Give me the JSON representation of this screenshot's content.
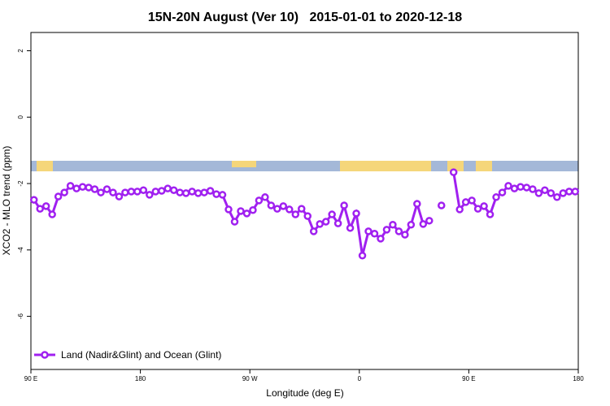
{
  "chart_data": {
    "type": "line",
    "title": "15N-20N August (Ver 10)   2015-01-01 to 2020-12-18",
    "x_label": "Longitude (deg E)",
    "y_label": "XCO2 - MLO trend (ppm)",
    "xlim": [
      90,
      540
    ],
    "ylim": [
      -7.6,
      2.55
    ],
    "xticks": [
      {
        "value": 90,
        "label": "90 E"
      },
      180,
      {
        "value": 270,
        "label": "90 W"
      },
      {
        "value": 360,
        "label": "0"
      },
      {
        "value": 450,
        "label": "90 E"
      },
      {
        "value": 540,
        "label": "180"
      }
    ],
    "yticks": [
      2,
      0,
      -2,
      -4,
      -6
    ],
    "x": [
      92.5,
      97.5,
      102.5,
      107.5,
      112.5,
      117.5,
      122.5,
      127.5,
      132.5,
      137.5,
      142.5,
      147.5,
      152.5,
      157.5,
      162.5,
      167.5,
      172.5,
      177.5,
      182.5,
      187.5,
      192.5,
      197.5,
      202.5,
      207.5,
      212.5,
      217.5,
      222.5,
      227.5,
      232.5,
      237.5,
      242.5,
      247.5,
      252.5,
      257.5,
      262.5,
      267.5,
      272.5,
      277.5,
      282.5,
      287.5,
      292.5,
      297.5,
      302.5,
      307.5,
      312.5,
      317.5,
      322.5,
      327.5,
      332.5,
      337.5,
      342.5,
      347.5,
      352.5,
      357.5,
      362.5,
      367.5,
      372.5,
      377.5,
      382.5,
      387.5,
      392.5,
      397.5,
      402.5,
      407.5,
      412.5,
      417.5,
      422.5,
      427.5,
      432.5,
      437.5,
      442.5,
      447.5,
      452.5,
      457.5,
      462.5,
      467.5,
      472.5,
      477.5,
      482.5,
      487.5,
      492.5,
      497.5,
      502.5,
      507.5,
      512.5,
      517.5,
      522.5,
      527.5,
      532.5,
      537.5
    ],
    "series": [
      {
        "name": "Land (Nadir&Glint) and Ocean (Glint)",
        "color": "#a020f0",
        "values": [
          -2.49,
          -2.76,
          -2.68,
          -2.93,
          -2.39,
          -2.27,
          -2.07,
          -2.15,
          -2.1,
          -2.12,
          -2.17,
          -2.27,
          -2.17,
          -2.27,
          -2.39,
          -2.27,
          -2.24,
          -2.24,
          -2.2,
          -2.34,
          -2.24,
          -2.22,
          -2.15,
          -2.2,
          -2.27,
          -2.29,
          -2.24,
          -2.29,
          -2.27,
          -2.22,
          -2.32,
          -2.34,
          -2.78,
          -3.15,
          -2.83,
          -2.9,
          -2.8,
          -2.51,
          -2.41,
          -2.66,
          -2.76,
          -2.68,
          -2.78,
          -2.93,
          -2.76,
          -2.98,
          -3.44,
          -3.22,
          -3.15,
          -2.93,
          -3.2,
          -2.66,
          -3.34,
          -2.9,
          -4.17,
          -3.44,
          -3.51,
          -3.66,
          -3.39,
          -3.24,
          -3.44,
          -3.54,
          -3.24,
          -2.61,
          -3.22,
          -3.12,
          null,
          -2.66,
          null,
          -1.66,
          -2.78,
          -2.56,
          -2.51,
          -2.76,
          -2.68,
          -2.93,
          -2.41,
          -2.27,
          -2.07,
          -2.15,
          -2.1,
          -2.12,
          -2.17,
          -2.29,
          -2.2,
          -2.29,
          -2.41,
          -2.29,
          -2.24,
          -2.24
        ]
      }
    ]
  }
}
